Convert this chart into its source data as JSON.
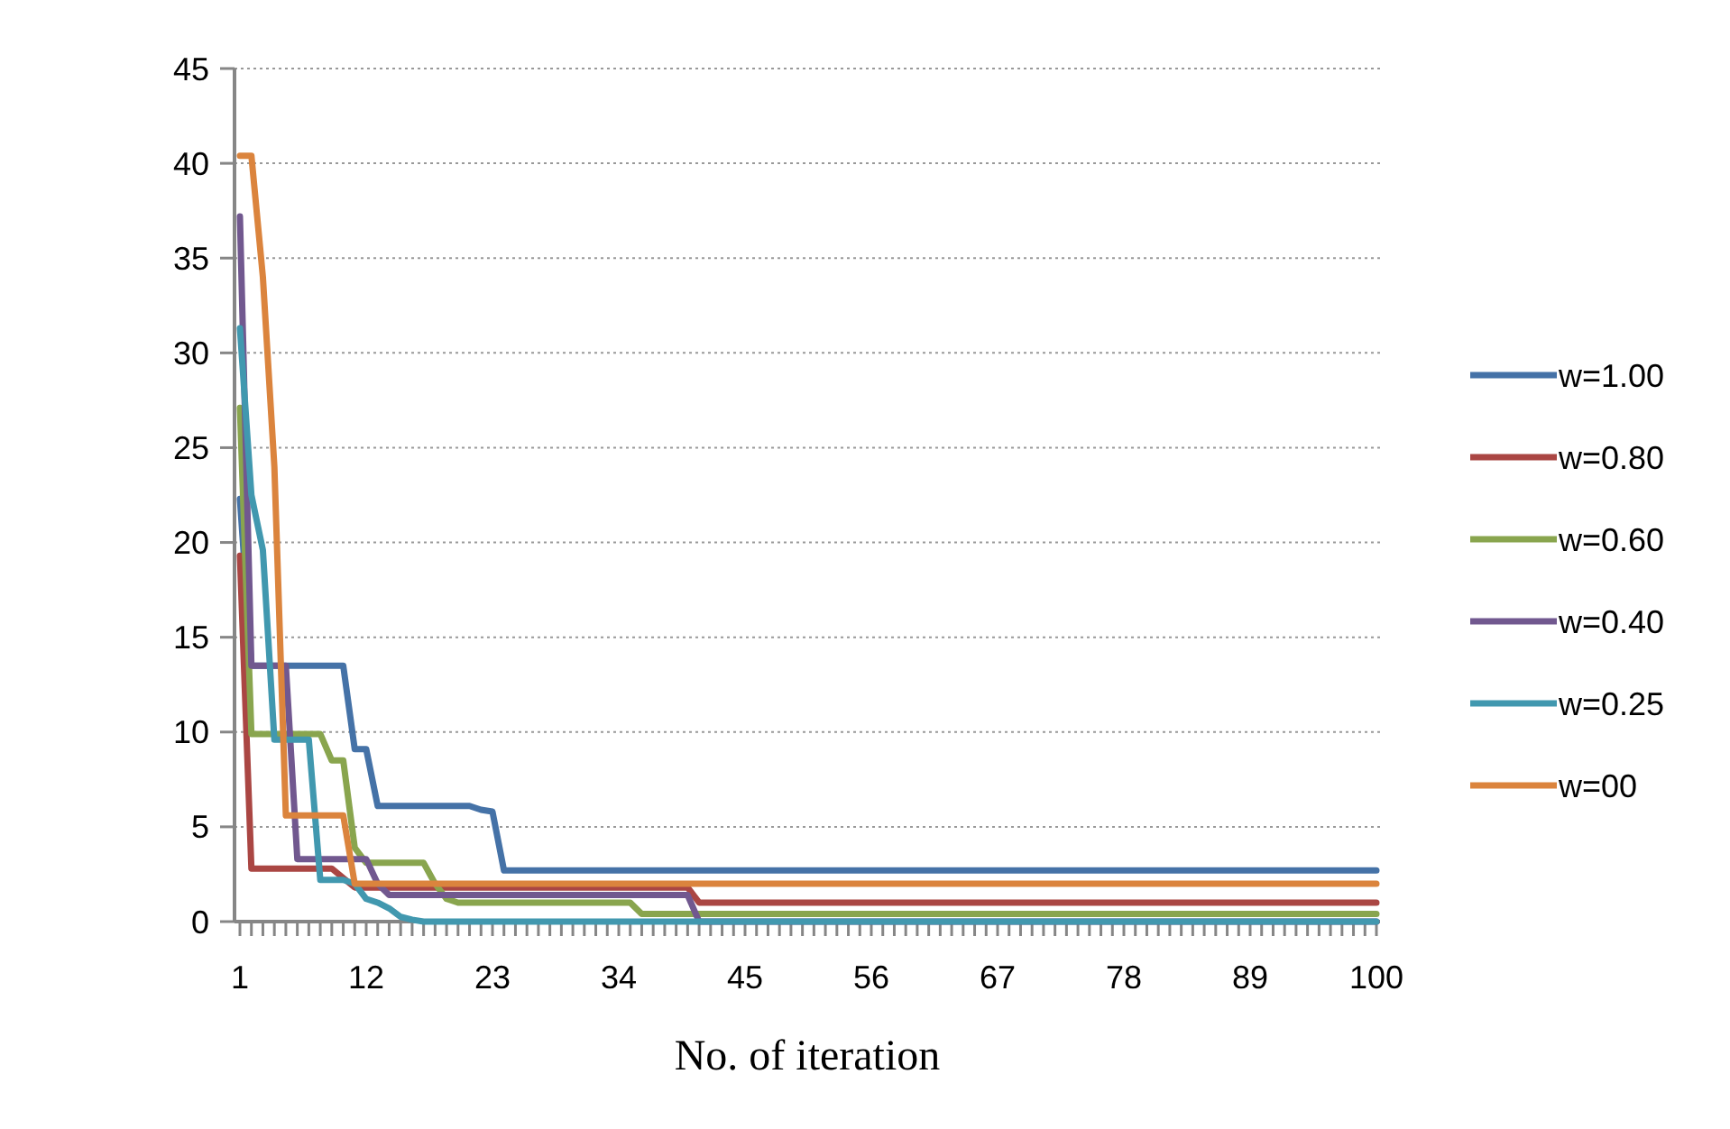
{
  "chart_data": {
    "type": "line",
    "xlabel": "No. of iteration",
    "categories": [
      "1",
      null,
      null,
      null,
      null,
      null,
      null,
      null,
      null,
      null,
      null,
      "12",
      null,
      null,
      null,
      null,
      null,
      null,
      null,
      null,
      null,
      null,
      "23",
      null,
      null,
      null,
      null,
      null,
      null,
      null,
      null,
      null,
      null,
      "34",
      null,
      null,
      null,
      null,
      null,
      null,
      null,
      null,
      null,
      null,
      "45",
      null,
      null,
      null,
      null,
      null,
      null,
      null,
      null,
      null,
      null,
      "56",
      null,
      null,
      null,
      null,
      null,
      null,
      null,
      null,
      null,
      null,
      "67",
      null,
      null,
      null,
      null,
      null,
      null,
      null,
      null,
      null,
      null,
      "78",
      null,
      null,
      null,
      null,
      null,
      null,
      null,
      null,
      null,
      null,
      "89",
      null,
      null,
      null,
      null,
      null,
      null,
      null,
      null,
      null,
      null,
      "100"
    ],
    "ylim": [
      0,
      45
    ],
    "yticks": [
      0,
      5,
      10,
      15,
      20,
      25,
      30,
      35,
      40,
      45
    ],
    "grid": "y",
    "legend": "right",
    "marker": "none",
    "line_style": "solid",
    "series": [
      {
        "name": "w=1.00",
        "color": "#4572a7",
        "values": [
          22.3,
          13.5,
          13.5,
          13.5,
          13.5,
          13.5,
          13.5,
          13.5,
          13.5,
          13.5,
          9.1,
          9.1,
          6.1,
          6.1,
          6.1,
          6.1,
          6.1,
          6.1,
          6.1,
          6.1,
          6.1,
          5.9,
          5.8,
          2.7,
          2.7,
          2.7,
          2.7,
          2.7,
          2.7,
          2.7,
          2.7,
          2.7,
          2.7,
          2.7,
          2.7,
          2.7,
          2.7,
          2.7,
          2.7,
          2.7,
          2.7,
          2.7,
          2.7,
          2.7,
          2.7,
          2.7,
          2.7,
          2.7,
          2.7,
          2.7,
          2.7,
          2.7,
          2.7,
          2.7,
          2.7,
          2.7,
          2.7,
          2.7,
          2.7,
          2.7,
          2.7,
          2.7,
          2.7,
          2.7,
          2.7,
          2.7,
          2.7,
          2.7,
          2.7,
          2.7,
          2.7,
          2.7,
          2.7,
          2.7,
          2.7,
          2.7,
          2.7,
          2.7,
          2.7,
          2.7,
          2.7,
          2.7,
          2.7,
          2.7,
          2.7,
          2.7,
          2.7,
          2.7,
          2.7,
          2.7,
          2.7,
          2.7,
          2.7,
          2.7,
          2.7,
          2.7,
          2.7,
          2.7,
          2.7,
          2.7
        ]
      },
      {
        "name": "w=0.80",
        "color": "#aa4643",
        "values": [
          19.3,
          2.8,
          2.8,
          2.8,
          2.8,
          2.8,
          2.8,
          2.8,
          2.8,
          2.3,
          1.8,
          1.8,
          1.8,
          1.8,
          1.8,
          1.8,
          1.8,
          1.8,
          1.8,
          1.8,
          1.8,
          1.8,
          1.8,
          1.8,
          1.8,
          1.8,
          1.8,
          1.8,
          1.8,
          1.8,
          1.8,
          1.8,
          1.8,
          1.8,
          1.8,
          1.8,
          1.8,
          1.8,
          1.8,
          1.8,
          1.0,
          1.0,
          1.0,
          1.0,
          1.0,
          1.0,
          1.0,
          1.0,
          1.0,
          1.0,
          1.0,
          1.0,
          1.0,
          1.0,
          1.0,
          1.0,
          1.0,
          1.0,
          1.0,
          1.0,
          1.0,
          1.0,
          1.0,
          1.0,
          1.0,
          1.0,
          1.0,
          1.0,
          1.0,
          1.0,
          1.0,
          1.0,
          1.0,
          1.0,
          1.0,
          1.0,
          1.0,
          1.0,
          1.0,
          1.0,
          1.0,
          1.0,
          1.0,
          1.0,
          1.0,
          1.0,
          1.0,
          1.0,
          1.0,
          1.0,
          1.0,
          1.0,
          1.0,
          1.0,
          1.0,
          1.0,
          1.0,
          1.0,
          1.0,
          1.0
        ]
      },
      {
        "name": "w=0.60",
        "color": "#89a54e",
        "values": [
          27.1,
          9.9,
          9.9,
          9.9,
          9.9,
          9.9,
          9.9,
          9.9,
          8.5,
          8.5,
          3.9,
          3.1,
          3.1,
          3.1,
          3.1,
          3.1,
          3.1,
          2.0,
          1.2,
          1.0,
          1.0,
          1.0,
          1.0,
          1.0,
          1.0,
          1.0,
          1.0,
          1.0,
          1.0,
          1.0,
          1.0,
          1.0,
          1.0,
          1.0,
          1.0,
          0.4,
          0.4,
          0.4,
          0.4,
          0.4,
          0.4,
          0.4,
          0.4,
          0.4,
          0.4,
          0.4,
          0.4,
          0.4,
          0.4,
          0.4,
          0.4,
          0.4,
          0.4,
          0.4,
          0.4,
          0.4,
          0.4,
          0.4,
          0.4,
          0.4,
          0.4,
          0.4,
          0.4,
          0.4,
          0.4,
          0.4,
          0.4,
          0.4,
          0.4,
          0.4,
          0.4,
          0.4,
          0.4,
          0.4,
          0.4,
          0.4,
          0.4,
          0.4,
          0.4,
          0.4,
          0.4,
          0.4,
          0.4,
          0.4,
          0.4,
          0.4,
          0.4,
          0.4,
          0.4,
          0.4,
          0.4,
          0.4,
          0.4,
          0.4,
          0.4,
          0.4,
          0.4,
          0.4,
          0.4,
          0.4
        ]
      },
      {
        "name": "w=0.40",
        "color": "#71588f",
        "values": [
          37.2,
          13.5,
          13.5,
          13.5,
          13.5,
          3.3,
          3.3,
          3.3,
          3.3,
          3.3,
          3.3,
          3.3,
          2.0,
          1.4,
          1.4,
          1.4,
          1.4,
          1.4,
          1.4,
          1.4,
          1.4,
          1.4,
          1.4,
          1.4,
          1.4,
          1.4,
          1.4,
          1.4,
          1.4,
          1.4,
          1.4,
          1.4,
          1.4,
          1.4,
          1.4,
          1.4,
          1.4,
          1.4,
          1.4,
          1.4,
          0.0,
          0.0,
          0.0,
          0.0,
          0.0,
          0.0,
          0.0,
          0.0,
          0.0,
          0.0,
          0.0,
          0.0,
          0.0,
          0.0,
          0.0,
          0.0,
          0.0,
          0.0,
          0.0,
          0.0,
          0.0,
          0.0,
          0.0,
          0.0,
          0.0,
          0.0,
          0.0,
          0.0,
          0.0,
          0.0,
          0.0,
          0.0,
          0.0,
          0.0,
          0.0,
          0.0,
          0.0,
          0.0,
          0.0,
          0.0,
          0.0,
          0.0,
          0.0,
          0.0,
          0.0,
          0.0,
          0.0,
          0.0,
          0.0,
          0.0,
          0.0,
          0.0,
          0.0,
          0.0,
          0.0,
          0.0,
          0.0,
          0.0,
          0.0,
          0.0
        ]
      },
      {
        "name": "w=0.25",
        "color": "#4198af",
        "values": [
          31.3,
          22.5,
          19.6,
          9.6,
          9.6,
          9.6,
          9.6,
          2.2,
          2.2,
          2.2,
          2.0,
          1.2,
          1.0,
          0.7,
          0.25,
          0.1,
          0.0,
          0.0,
          0.0,
          0.0,
          0.0,
          0.0,
          0.0,
          0.0,
          0.0,
          0.0,
          0.0,
          0.0,
          0.0,
          0.0,
          0.0,
          0.0,
          0.0,
          0.0,
          0.0,
          0.0,
          0.0,
          0.0,
          0.0,
          0.0,
          0.0,
          0.0,
          0.0,
          0.0,
          0.0,
          0.0,
          0.0,
          0.0,
          0.0,
          0.0,
          0.0,
          0.0,
          0.0,
          0.0,
          0.0,
          0.0,
          0.0,
          0.0,
          0.0,
          0.0,
          0.0,
          0.0,
          0.0,
          0.0,
          0.0,
          0.0,
          0.0,
          0.0,
          0.0,
          0.0,
          0.0,
          0.0,
          0.0,
          0.0,
          0.0,
          0.0,
          0.0,
          0.0,
          0.0,
          0.0,
          0.0,
          0.0,
          0.0,
          0.0,
          0.0,
          0.0,
          0.0,
          0.0,
          0.0,
          0.0,
          0.0,
          0.0,
          0.0,
          0.0,
          0.0,
          0.0,
          0.0,
          0.0,
          0.0,
          0.0
        ]
      },
      {
        "name": "w=00",
        "color": "#db843d",
        "values": [
          40.4,
          40.4,
          34.0,
          24.0,
          5.6,
          5.6,
          5.6,
          5.6,
          5.6,
          5.6,
          2.0,
          2.0,
          2.0,
          2.0,
          2.0,
          2.0,
          2.0,
          2.0,
          2.0,
          2.0,
          2.0,
          2.0,
          2.0,
          2.0,
          2.0,
          2.0,
          2.0,
          2.0,
          2.0,
          2.0,
          2.0,
          2.0,
          2.0,
          2.0,
          2.0,
          2.0,
          2.0,
          2.0,
          2.0,
          2.0,
          2.0,
          2.0,
          2.0,
          2.0,
          2.0,
          2.0,
          2.0,
          2.0,
          2.0,
          2.0,
          2.0,
          2.0,
          2.0,
          2.0,
          2.0,
          2.0,
          2.0,
          2.0,
          2.0,
          2.0,
          2.0,
          2.0,
          2.0,
          2.0,
          2.0,
          2.0,
          2.0,
          2.0,
          2.0,
          2.0,
          2.0,
          2.0,
          2.0,
          2.0,
          2.0,
          2.0,
          2.0,
          2.0,
          2.0,
          2.0,
          2.0,
          2.0,
          2.0,
          2.0,
          2.0,
          2.0,
          2.0,
          2.0,
          2.0,
          2.0,
          2.0,
          2.0,
          2.0,
          2.0,
          2.0,
          2.0,
          2.0,
          2.0,
          2.0,
          2.0
        ]
      }
    ]
  }
}
